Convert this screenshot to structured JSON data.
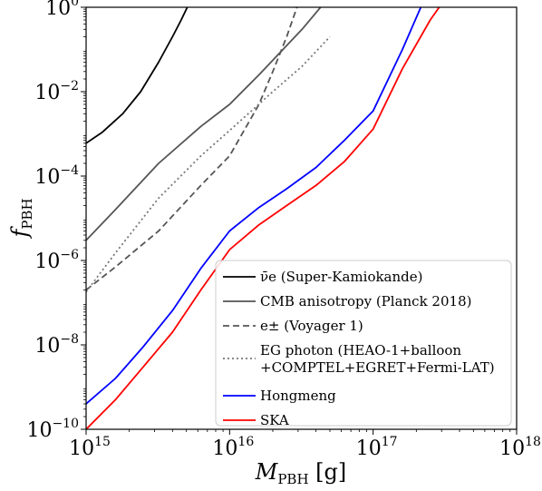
{
  "chart_data": {
    "type": "line",
    "xlabel": {
      "main": "M",
      "sub": "PBH",
      "unit": " [g]"
    },
    "ylabel": {
      "main": "f",
      "sub": "PBH"
    },
    "x_scale": "log",
    "y_scale": "log",
    "xlim": [
      1000000000000000.0,
      1e+18
    ],
    "ylim": [
      1e-10,
      1
    ],
    "grid": false,
    "legend_placement": "lower-right",
    "x_ticks": [
      {
        "base": "10",
        "exp": "15",
        "value": 1000000000000000.0
      },
      {
        "base": "10",
        "exp": "16",
        "value": 1e+16
      },
      {
        "base": "10",
        "exp": "17",
        "value": 1e+17
      },
      {
        "base": "10",
        "exp": "18",
        "value": 1e+18
      }
    ],
    "y_ticks": [
      {
        "base": "10",
        "exp": "−10",
        "value": 1e-10
      },
      {
        "base": "10",
        "exp": "−8",
        "value": 1e-08
      },
      {
        "base": "10",
        "exp": "−6",
        "value": 1e-06
      },
      {
        "base": "10",
        "exp": "−4",
        "value": 0.0001
      },
      {
        "base": "10",
        "exp": "−2",
        "value": 0.01
      },
      {
        "base": "10",
        "exp": "0",
        "value": 1
      }
    ],
    "series": [
      {
        "name": "ν̄e (Super-Kamiokande)",
        "color": "#000000",
        "dash": "solid",
        "points": [
          [
            1000000000000000.0,
            0.0006
          ],
          [
            1300000000000000.0,
            0.0011
          ],
          [
            1800000000000000.0,
            0.003
          ],
          [
            2400000000000000.0,
            0.01
          ],
          [
            3200000000000000.0,
            0.05
          ],
          [
            4000000000000000.0,
            0.2
          ],
          [
            4600000000000000.0,
            0.5
          ],
          [
            5200000000000000.0,
            1.2
          ]
        ]
      },
      {
        "name": "CMB anisotropy (Planck 2018)",
        "color": "#555555",
        "dash": "solid",
        "points": [
          [
            1000000000000000.0,
            3e-06
          ],
          [
            1600000000000000.0,
            1.6e-05
          ],
          [
            3200000000000000.0,
            0.0002
          ],
          [
            6300000000000000.0,
            0.0015
          ],
          [
            1e+16,
            0.005
          ],
          [
            1.6e+16,
            0.025
          ],
          [
            3.2e+16,
            0.3
          ],
          [
            4.5e+16,
            1.2
          ]
        ]
      },
      {
        "name": "e± (Voyager 1)",
        "color": "#555555",
        "dash": "dashed",
        "points": [
          [
            1000000000000000.0,
            2e-07
          ],
          [
            1600000000000000.0,
            7e-07
          ],
          [
            3200000000000000.0,
            5e-06
          ],
          [
            6300000000000000.0,
            6e-05
          ],
          [
            1e+16,
            0.0003
          ],
          [
            1.6e+16,
            0.005
          ],
          [
            2e+16,
            0.03
          ],
          [
            2.5e+16,
            0.2
          ],
          [
            3e+16,
            1.2
          ]
        ]
      },
      {
        "name": "EG photon (HEAO-1+balloon +COMPTEL+EGRET+Fermi-LAT)",
        "label_lines": [
          "EG photon (HEAO-1+balloon",
          "+COMPTEL+EGRET+Fermi-LAT)"
        ],
        "color": "#777777",
        "dash": "dotted",
        "points": [
          [
            1000000000000000.0,
            1.8e-07
          ],
          [
            1600000000000000.0,
            1.5e-06
          ],
          [
            3200000000000000.0,
            3e-05
          ],
          [
            6300000000000000.0,
            0.0003
          ],
          [
            1e+16,
            0.0012
          ],
          [
            2e+16,
            0.01
          ],
          [
            3.2e+16,
            0.04
          ],
          [
            5e+16,
            0.2
          ]
        ]
      },
      {
        "name": "Hongmeng",
        "color": "#0000ff",
        "dash": "solid",
        "points": [
          [
            1000000000000000.0,
            4e-10
          ],
          [
            1600000000000000.0,
            1.6e-09
          ],
          [
            2500000000000000.0,
            9e-09
          ],
          [
            4000000000000000.0,
            6.5e-08
          ],
          [
            6300000000000000.0,
            6.5e-07
          ],
          [
            1e+16,
            5e-06
          ],
          [
            1.6e+16,
            1.8e-05
          ],
          [
            2.5e+16,
            5e-05
          ],
          [
            4e+16,
            0.00016
          ],
          [
            6.3e+16,
            0.0007
          ],
          [
            1e+17,
            0.0035
          ],
          [
            1.6e+17,
            0.1
          ],
          [
            2.2e+17,
            1.2
          ]
        ]
      },
      {
        "name": "SKA",
        "color": "#ff0000",
        "dash": "solid",
        "points": [
          [
            1000000000000000.0,
            1e-10
          ],
          [
            1600000000000000.0,
            5e-10
          ],
          [
            2500000000000000.0,
            3e-09
          ],
          [
            4000000000000000.0,
            2e-08
          ],
          [
            6300000000000000.0,
            2e-07
          ],
          [
            1e+16,
            1.8e-06
          ],
          [
            1.6e+16,
            7e-06
          ],
          [
            2.5e+16,
            2e-05
          ],
          [
            4e+16,
            6e-05
          ],
          [
            6.3e+16,
            0.00022
          ],
          [
            1e+17,
            0.0013
          ],
          [
            1.6e+17,
            0.035
          ],
          [
            2.5e+17,
            0.5
          ],
          [
            3e+17,
            1.2
          ]
        ]
      }
    ]
  }
}
